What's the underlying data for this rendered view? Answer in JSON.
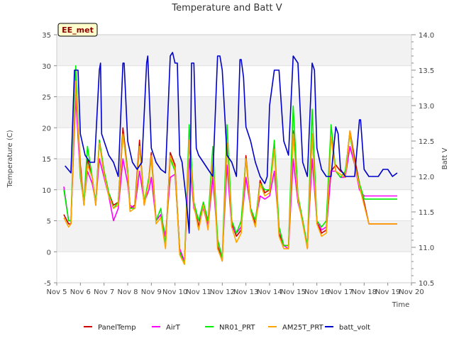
{
  "chart_data": {
    "type": "line",
    "title": "Temperature and Batt V",
    "site_label": "EE_met",
    "xlabel": "Time",
    "ylabel": "Temperature (C)",
    "y2label": "Batt V",
    "xlim": [
      5,
      20
    ],
    "ylim": [
      -5,
      35
    ],
    "y2lim": [
      10.5,
      14.0
    ],
    "x_ticks": [
      5,
      6,
      7,
      8,
      9,
      10,
      11,
      12,
      13,
      14,
      15,
      16,
      17,
      18,
      19,
      20
    ],
    "x_tick_labels": [
      "Nov 5",
      "Nov 6",
      "Nov 7",
      "Nov 8",
      "Nov 9",
      "Nov 10",
      "Nov 11",
      "Nov 12",
      "Nov 13",
      "Nov 14",
      "Nov 15",
      "Nov 16",
      "Nov 17",
      "Nov 18",
      "Nov 19",
      "Nov 20"
    ],
    "y_ticks": [
      -5,
      0,
      5,
      10,
      15,
      20,
      25,
      30,
      35
    ],
    "y2_ticks": [
      10.5,
      11.0,
      11.5,
      12.0,
      12.5,
      13.0,
      13.5,
      14.0
    ],
    "y2_tick_labels": [
      "10.5",
      "11.0",
      "11.5",
      "12.0",
      "12.5",
      "13.0",
      "13.5",
      "14.0"
    ],
    "grid": "horizontal bands",
    "legend_position": "bottom",
    "series": [
      {
        "name": "PanelTemp",
        "color": "#cc0000",
        "axis": "left",
        "x": [
          5.3,
          5.5,
          5.6,
          5.8,
          6.0,
          6.15,
          6.3,
          6.5,
          6.65,
          6.8,
          7.0,
          7.2,
          7.4,
          7.6,
          7.8,
          8.0,
          8.1,
          8.3,
          8.5,
          8.7,
          8.9,
          9.0,
          9.2,
          9.4,
          9.6,
          9.8,
          10.0,
          10.2,
          10.4,
          10.6,
          10.8,
          11.0,
          11.2,
          11.4,
          11.6,
          11.8,
          12.0,
          12.2,
          12.4,
          12.6,
          12.8,
          13.0,
          13.2,
          13.4,
          13.6,
          13.8,
          14.0,
          14.2,
          14.4,
          14.6,
          14.8,
          15.0,
          15.2,
          15.4,
          15.6,
          15.8,
          16.0,
          16.2,
          16.4,
          16.6,
          16.8,
          17.0,
          17.2,
          17.4,
          17.6,
          17.8,
          18.0,
          18.2,
          18.4,
          18.6,
          18.8,
          19.0,
          19.2,
          19.4
        ],
        "values": [
          6,
          4.5,
          4.5,
          27,
          14,
          7.5,
          15,
          12,
          7.5,
          18,
          13,
          9.5,
          7.5,
          8,
          20,
          13,
          7,
          7.5,
          18,
          7.5,
          12,
          16,
          5,
          6,
          1,
          16,
          14,
          0,
          -2,
          18,
          8,
          4,
          8,
          4,
          16,
          1,
          -1.5,
          17.5,
          4.5,
          2.5,
          3.5,
          15.5,
          7,
          4.5,
          11.5,
          9.5,
          10,
          17,
          3,
          1,
          1,
          19.5,
          9,
          5,
          0.5,
          19,
          5,
          3,
          3.5,
          13,
          14,
          13,
          12.5,
          19.5,
          15,
          11,
          8,
          4.5,
          4.5,
          4.5,
          4.5,
          4.5,
          4.5,
          4.5
        ]
      },
      {
        "name": "AirT",
        "color": "#ff00ff",
        "axis": "left",
        "x": [
          5.3,
          5.5,
          5.6,
          5.8,
          6.0,
          6.15,
          6.3,
          6.5,
          6.65,
          6.8,
          7.0,
          7.2,
          7.4,
          7.6,
          7.8,
          8.0,
          8.1,
          8.3,
          8.5,
          8.7,
          8.9,
          9.0,
          9.2,
          9.4,
          9.6,
          9.8,
          10.0,
          10.2,
          10.4,
          10.6,
          10.8,
          11.0,
          11.2,
          11.4,
          11.6,
          11.8,
          12.0,
          12.2,
          12.4,
          12.6,
          12.8,
          13.0,
          13.2,
          13.4,
          13.6,
          13.8,
          14.0,
          14.2,
          14.4,
          14.6,
          14.8,
          15.0,
          15.2,
          15.4,
          15.6,
          15.8,
          16.0,
          16.2,
          16.4,
          16.6,
          16.8,
          17.0,
          17.2,
          17.4,
          17.6,
          17.8,
          18.0,
          18.2,
          18.4,
          18.6,
          18.8,
          19.0,
          19.2,
          19.4
        ],
        "values": [
          10.5,
          5,
          5,
          25,
          12,
          8,
          13,
          11,
          8,
          15,
          12,
          9,
          5,
          7,
          15,
          11,
          7.5,
          7,
          13,
          8,
          10,
          12,
          5,
          6,
          2.5,
          12,
          12.5,
          0.5,
          -1.5,
          15,
          7,
          5,
          7,
          4,
          12,
          2,
          -1,
          14,
          4,
          3,
          4,
          12,
          7,
          5,
          9,
          8.5,
          9,
          13,
          4,
          1,
          0.5,
          15,
          8,
          5,
          1,
          15,
          5,
          3.5,
          4,
          13,
          13,
          12,
          12,
          17,
          14,
          10,
          9,
          9,
          9,
          9,
          9,
          9,
          9,
          9
        ]
      },
      {
        "name": "NR01_PRT",
        "color": "#00ee00",
        "axis": "left",
        "x": [
          5.3,
          5.5,
          5.6,
          5.8,
          6.0,
          6.15,
          6.3,
          6.5,
          6.65,
          6.8,
          7.0,
          7.2,
          7.4,
          7.6,
          7.8,
          8.0,
          8.1,
          8.3,
          8.5,
          8.7,
          8.9,
          9.0,
          9.2,
          9.4,
          9.6,
          9.8,
          10.0,
          10.2,
          10.4,
          10.6,
          10.8,
          11.0,
          11.2,
          11.4,
          11.6,
          11.8,
          12.0,
          12.2,
          12.4,
          12.6,
          12.8,
          13.0,
          13.2,
          13.4,
          13.6,
          13.8,
          14.0,
          14.2,
          14.4,
          14.6,
          14.8,
          15.0,
          15.2,
          15.4,
          15.6,
          15.8,
          16.0,
          16.2,
          16.4,
          16.6,
          16.8,
          17.0,
          17.2,
          17.4,
          17.6,
          17.8,
          18.0,
          18.2,
          18.4,
          18.6,
          18.8,
          19.0,
          19.2,
          19.4
        ],
        "values": [
          10,
          5,
          5,
          30,
          12,
          8,
          17,
          12,
          8,
          18,
          13,
          9.5,
          7,
          8,
          19,
          13,
          7,
          7,
          17,
          8,
          12,
          15,
          5,
          7,
          1,
          15,
          13,
          0,
          -2,
          20.5,
          8,
          5,
          8,
          5,
          17,
          2,
          -1,
          20.5,
          5,
          3,
          5,
          15,
          7,
          5,
          11,
          10,
          10,
          18,
          4,
          1,
          1,
          23.5,
          9,
          5,
          1,
          23,
          5,
          4,
          5,
          20.5,
          13,
          12,
          13,
          19,
          14,
          11,
          8.5,
          8.5,
          8.5,
          8.5,
          8.5,
          8.5,
          8.5,
          8.5
        ]
      },
      {
        "name": "AM25T_PRT",
        "color": "#ffa500",
        "axis": "left",
        "x": [
          5.3,
          5.5,
          5.6,
          5.8,
          6.0,
          6.15,
          6.3,
          6.5,
          6.65,
          6.8,
          7.0,
          7.2,
          7.4,
          7.6,
          7.8,
          8.0,
          8.1,
          8.3,
          8.5,
          8.7,
          8.9,
          9.0,
          9.2,
          9.4,
          9.6,
          9.8,
          10.0,
          10.2,
          10.4,
          10.6,
          10.8,
          11.0,
          11.2,
          11.4,
          11.6,
          11.8,
          12.0,
          12.2,
          12.4,
          12.6,
          12.8,
          13.0,
          13.2,
          13.4,
          13.6,
          13.8,
          14.0,
          14.2,
          14.4,
          14.6,
          14.8,
          15.0,
          15.2,
          15.4,
          15.6,
          15.8,
          16.0,
          16.2,
          16.4,
          16.6,
          16.8,
          17.0,
          17.2,
          17.4,
          17.6,
          17.8,
          18.0,
          18.2,
          18.4,
          18.6,
          18.8,
          19.0,
          19.2,
          19.4
        ],
        "values": [
          5.5,
          4,
          4.5,
          27.5,
          13,
          7.5,
          14,
          12,
          7.5,
          17.5,
          12.5,
          9,
          7,
          7.5,
          19,
          12.5,
          6.5,
          7,
          17,
          7.5,
          11.5,
          15.5,
          4.5,
          5.5,
          0.5,
          15.5,
          13.5,
          -0.5,
          -2,
          18,
          7.5,
          3.5,
          7.5,
          3.5,
          15.5,
          0.5,
          -1.5,
          17.5,
          4,
          1.5,
          3,
          15,
          6.5,
          4,
          11,
          9,
          9.5,
          16.5,
          2.5,
          0.5,
          0.5,
          19,
          8.5,
          4.5,
          0.5,
          19,
          4.5,
          2.5,
          3,
          18.5,
          13,
          12.5,
          12,
          19.5,
          14,
          10.5,
          7.5,
          4.5,
          4.5,
          4.5,
          4.5,
          4.5,
          4.5,
          4.5
        ]
      },
      {
        "name": "batt_volt",
        "color": "#0000cc",
        "axis": "right",
        "x": [
          5.35,
          5.6,
          5.75,
          5.8,
          5.9,
          6.0,
          6.2,
          6.4,
          6.6,
          6.8,
          6.85,
          6.9,
          7.0,
          7.2,
          7.4,
          7.6,
          7.8,
          7.85,
          8.0,
          8.2,
          8.4,
          8.6,
          8.8,
          8.85,
          9.0,
          9.2,
          9.4,
          9.6,
          9.8,
          9.9,
          10.0,
          10.1,
          10.2,
          10.3,
          10.5,
          10.6,
          10.65,
          10.7,
          10.8,
          10.9,
          11.0,
          11.2,
          11.4,
          11.6,
          11.8,
          11.9,
          12.0,
          12.2,
          12.4,
          12.6,
          12.75,
          12.8,
          12.9,
          13.0,
          13.2,
          13.4,
          13.6,
          13.8,
          13.9,
          14.0,
          14.2,
          14.4,
          14.6,
          14.8,
          15.0,
          15.2,
          15.4,
          15.6,
          15.8,
          15.9,
          16.0,
          16.2,
          16.4,
          16.6,
          16.8,
          16.9,
          17.0,
          17.2,
          17.4,
          17.6,
          17.8,
          17.85,
          18.0,
          18.2,
          18.4,
          18.6,
          18.8,
          18.9,
          19.0,
          19.2,
          19.4
        ],
        "values": [
          12.15,
          12.05,
          13.5,
          13.5,
          13.5,
          12.6,
          12.3,
          12.2,
          12.2,
          13.5,
          13.6,
          12.6,
          12.5,
          12.3,
          12.2,
          12.0,
          13.6,
          13.6,
          12.5,
          12.2,
          12.1,
          12.2,
          13.6,
          13.7,
          12.4,
          12.2,
          12.1,
          12.05,
          13.7,
          13.75,
          13.6,
          13.6,
          12.3,
          12.2,
          11.6,
          11.2,
          12.0,
          13.6,
          13.6,
          12.4,
          12.3,
          12.2,
          12.1,
          12.0,
          13.7,
          13.7,
          13.5,
          12.3,
          12.2,
          12.0,
          13.65,
          13.65,
          13.4,
          12.7,
          12.5,
          12.2,
          12.0,
          11.9,
          12.0,
          13.0,
          13.5,
          13.5,
          12.5,
          12.3,
          13.7,
          13.6,
          12.2,
          12.0,
          13.6,
          13.5,
          12.4,
          12.1,
          12.0,
          12.0,
          12.7,
          12.6,
          12.1,
          12.0,
          12.0,
          12.0,
          12.8,
          12.8,
          12.1,
          12.0,
          12.0,
          12.0,
          12.1,
          12.1,
          12.1,
          12.0,
          12.05
        ]
      }
    ]
  }
}
